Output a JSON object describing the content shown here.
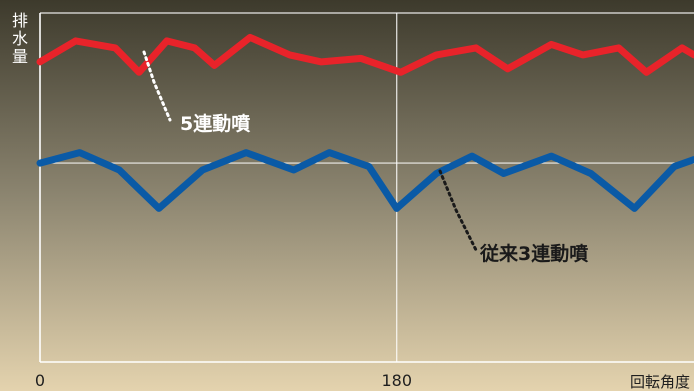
{
  "chart_data": {
    "type": "line",
    "ylabel": "排水量",
    "xlabel": "回転角度",
    "x_ticks": [
      "0",
      "180"
    ],
    "grid": true,
    "series": [
      {
        "name": "5連動噴",
        "color": "#e8232a",
        "points": [
          [
            0,
            8.6
          ],
          [
            18,
            9.2
          ],
          [
            38,
            9.0
          ],
          [
            50,
            8.3
          ],
          [
            64,
            9.2
          ],
          [
            78,
            9.0
          ],
          [
            88,
            8.5
          ],
          [
            106,
            9.3
          ],
          [
            126,
            8.8
          ],
          [
            142,
            8.6
          ],
          [
            162,
            8.7
          ],
          [
            182,
            8.3
          ],
          [
            200,
            8.8
          ],
          [
            220,
            9.0
          ],
          [
            236,
            8.4
          ],
          [
            258,
            9.1
          ],
          [
            274,
            8.8
          ],
          [
            292,
            9.0
          ],
          [
            306,
            8.3
          ],
          [
            324,
            9.0
          ],
          [
            330,
            8.8
          ]
        ]
      },
      {
        "name": "従来3連動噴",
        "color": "#0a5aa6",
        "points": [
          [
            0,
            5.7
          ],
          [
            20,
            6.0
          ],
          [
            40,
            5.5
          ],
          [
            60,
            4.4
          ],
          [
            82,
            5.5
          ],
          [
            104,
            6.0
          ],
          [
            128,
            5.5
          ],
          [
            146,
            6.0
          ],
          [
            166,
            5.6
          ],
          [
            180,
            4.4
          ],
          [
            200,
            5.4
          ],
          [
            218,
            5.9
          ],
          [
            234,
            5.4
          ],
          [
            258,
            5.9
          ],
          [
            278,
            5.4
          ],
          [
            300,
            4.4
          ],
          [
            320,
            5.6
          ],
          [
            330,
            5.8
          ]
        ]
      }
    ]
  }
}
